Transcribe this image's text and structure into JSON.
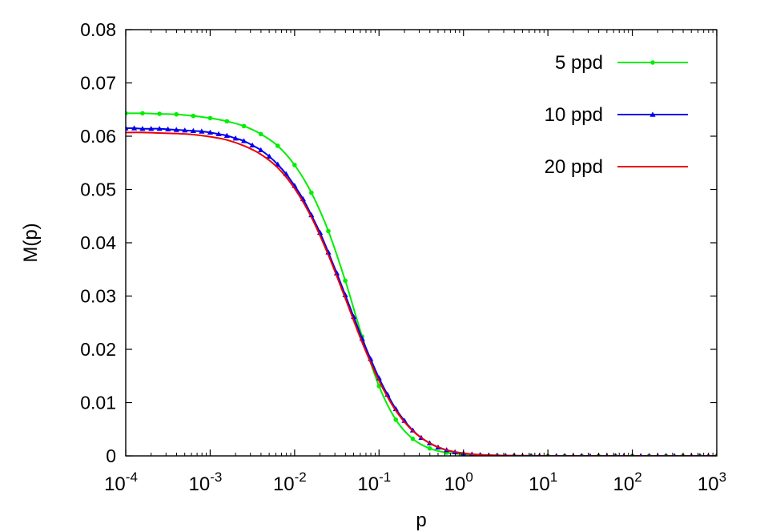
{
  "chart_data": {
    "type": "line",
    "title": "",
    "xlabel": "p",
    "ylabel": "M(p)",
    "xscale": "log",
    "xlim": [
      0.0001,
      1000
    ],
    "ylim": [
      0,
      0.08
    ],
    "grid": false,
    "legend_position": "top-right",
    "x_ticks": [
      {
        "value": 0.0001,
        "base": "10",
        "exp": "-4"
      },
      {
        "value": 0.001,
        "base": "10",
        "exp": "-3"
      },
      {
        "value": 0.01,
        "base": "10",
        "exp": "-2"
      },
      {
        "value": 0.1,
        "base": "10",
        "exp": "-1"
      },
      {
        "value": 1,
        "base": "10",
        "exp": "0"
      },
      {
        "value": 10,
        "base": "10",
        "exp": "1"
      },
      {
        "value": 100,
        "base": "10",
        "exp": "2"
      },
      {
        "value": 1000,
        "base": "10",
        "exp": "3"
      }
    ],
    "y_ticks": [
      {
        "value": 0,
        "label": "0"
      },
      {
        "value": 0.01,
        "label": "0.01"
      },
      {
        "value": 0.02,
        "label": "0.02"
      },
      {
        "value": 0.03,
        "label": "0.03"
      },
      {
        "value": 0.04,
        "label": "0.04"
      },
      {
        "value": 0.05,
        "label": "0.05"
      },
      {
        "value": 0.06,
        "label": "0.06"
      },
      {
        "value": 0.07,
        "label": "0.07"
      },
      {
        "value": 0.08,
        "label": "0.08"
      }
    ],
    "series": [
      {
        "name": "5 ppd",
        "color": "#00ee00",
        "marker": "circle",
        "x": [
          0.0001,
          0.000158,
          0.000251,
          0.000398,
          0.000631,
          0.001,
          0.00158,
          0.00251,
          0.00398,
          0.00631,
          0.01,
          0.0158,
          0.0251,
          0.0398,
          0.0631,
          0.1,
          0.158,
          0.251,
          0.398,
          0.631,
          1,
          1.58,
          2.51,
          3.98,
          6.31,
          10,
          15.8,
          25.1,
          39.8,
          63.1,
          100,
          158,
          251,
          398,
          631,
          1000
        ],
        "y": [
          0.0643,
          0.0643,
          0.0642,
          0.0641,
          0.0638,
          0.0634,
          0.0628,
          0.0619,
          0.0604,
          0.0582,
          0.0546,
          0.0494,
          0.0422,
          0.0329,
          0.0224,
          0.0131,
          0.0068,
          0.0032,
          0.0014,
          0.0006,
          0.0003,
          0.0001,
          5e-05,
          2e-05,
          1e-05,
          0,
          0,
          0,
          0,
          0,
          0,
          0,
          0,
          0,
          0,
          0
        ]
      },
      {
        "name": "10 ppd",
        "color": "#0000ee",
        "marker": "triangle",
        "x": [
          0.0001,
          0.000126,
          0.000158,
          0.0002,
          0.000251,
          0.000316,
          0.000398,
          0.000501,
          0.000631,
          0.000794,
          0.001,
          0.00126,
          0.00158,
          0.002,
          0.00251,
          0.00316,
          0.00398,
          0.00501,
          0.00631,
          0.00794,
          0.01,
          0.0126,
          0.0158,
          0.02,
          0.0251,
          0.0316,
          0.0398,
          0.0501,
          0.0631,
          0.0794,
          0.1,
          0.126,
          0.158,
          0.2,
          0.251,
          0.316,
          0.398,
          0.501,
          0.631,
          0.794,
          1,
          1.26,
          1.58,
          2,
          2.51,
          3.16,
          3.98,
          5.01,
          6.31,
          7.94,
          10,
          12.6,
          15.8,
          20,
          25.1,
          31.6,
          39.8,
          50.1,
          63.1,
          79.4,
          100,
          126,
          158,
          200,
          251,
          316,
          398,
          501,
          631,
          794,
          1000
        ],
        "y": [
          0.0615,
          0.0615,
          0.0614,
          0.0614,
          0.0614,
          0.0613,
          0.0612,
          0.0611,
          0.061,
          0.0609,
          0.0607,
          0.0604,
          0.0601,
          0.0596,
          0.0591,
          0.0583,
          0.0574,
          0.0562,
          0.0547,
          0.0529,
          0.0507,
          0.0482,
          0.0452,
          0.0419,
          0.0382,
          0.0343,
          0.0302,
          0.0261,
          0.022,
          0.0182,
          0.0146,
          0.0115,
          0.0088,
          0.0066,
          0.0048,
          0.0034,
          0.0024,
          0.0016,
          0.0011,
          0.0007,
          0.0005,
          0.0003,
          0.0002,
          0.0001,
          8e-05,
          5e-05,
          3e-05,
          2e-05,
          1e-05,
          1e-05,
          0,
          0,
          0,
          0,
          0,
          0,
          0,
          0,
          0,
          0,
          0,
          0,
          0,
          0,
          0,
          0,
          0,
          0,
          0,
          0,
          0
        ]
      },
      {
        "name": "20 ppd",
        "color": "#ee0000",
        "marker": "none",
        "x": [
          0.0001,
          0.000158,
          0.000251,
          0.000398,
          0.000631,
          0.001,
          0.00158,
          0.00251,
          0.00398,
          0.00631,
          0.01,
          0.0158,
          0.0251,
          0.0398,
          0.0631,
          0.1,
          0.158,
          0.251,
          0.398,
          0.631,
          1,
          1.58,
          2.51,
          3.98,
          6.31,
          10,
          100,
          1000
        ],
        "y": [
          0.0607,
          0.0607,
          0.0606,
          0.0605,
          0.0603,
          0.0599,
          0.0593,
          0.0582,
          0.0566,
          0.0541,
          0.0502,
          0.0448,
          0.0377,
          0.0296,
          0.0213,
          0.0141,
          0.0085,
          0.0047,
          0.0024,
          0.0011,
          0.0005,
          0.0002,
          0.0001,
          4e-05,
          2e-05,
          0,
          0,
          0
        ]
      }
    ]
  }
}
